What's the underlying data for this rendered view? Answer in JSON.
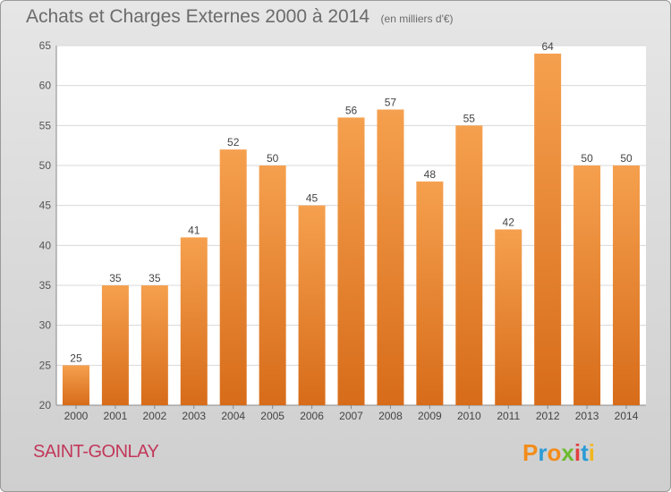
{
  "header": {
    "title": "Achats et Charges Externes 2000 à 2014",
    "unit": "(en milliers d'€)"
  },
  "footer": {
    "commune": "SAINT-GONLAY",
    "logo_letters": [
      "P",
      "r",
      "o",
      "x",
      "i",
      "t",
      "i"
    ],
    "logo_colors": [
      "#f28c1b",
      "#2b9bd6",
      "#f28c1b",
      "#6dbb2f",
      "#e23e3e",
      "#2b9bd6",
      "#f2b61b"
    ]
  },
  "chart_data": {
    "type": "bar",
    "categories": [
      "2000",
      "2001",
      "2002",
      "2003",
      "2004",
      "2005",
      "2006",
      "2007",
      "2008",
      "2009",
      "2010",
      "2011",
      "2012",
      "2013",
      "2014"
    ],
    "values": [
      25,
      35,
      35,
      41,
      52,
      50,
      45,
      56,
      57,
      48,
      55,
      42,
      64,
      50,
      50
    ],
    "ylim": [
      20,
      65
    ],
    "yticks": [
      20,
      25,
      30,
      35,
      40,
      45,
      50,
      55,
      60,
      65
    ],
    "grid": true,
    "bar_color_top": "#f5a04e",
    "bar_color_bottom": "#d76c1a"
  }
}
